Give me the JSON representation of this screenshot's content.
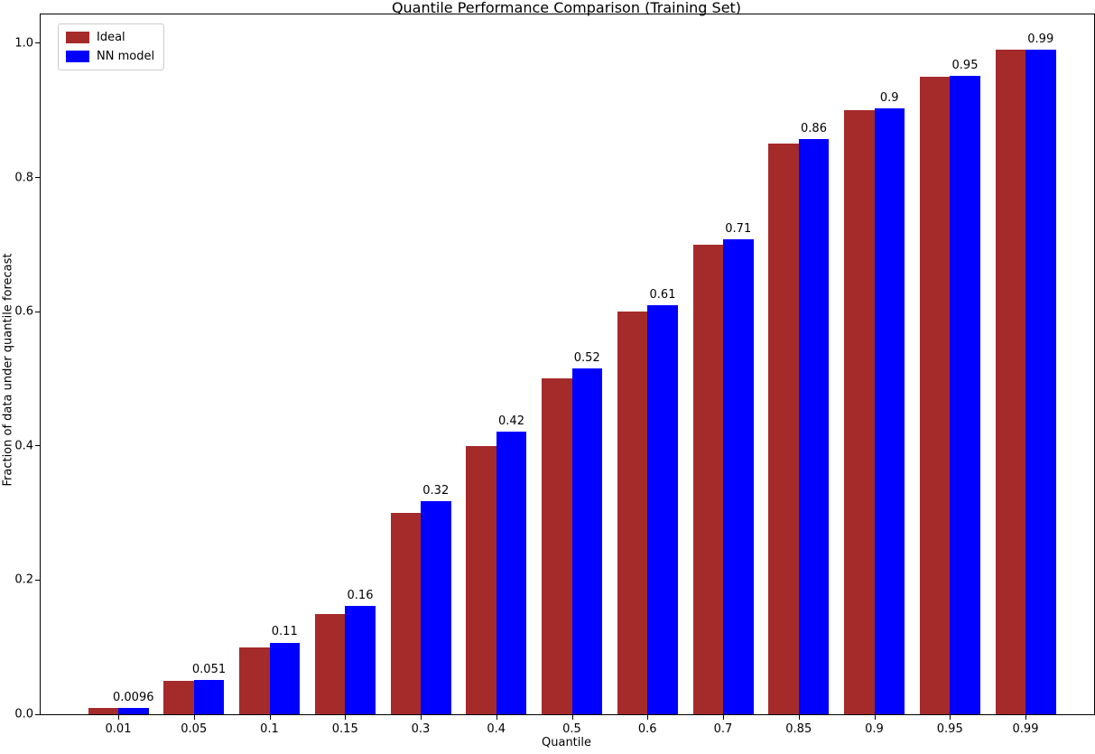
{
  "chart_data": {
    "type": "bar",
    "title": "Quantile Performance Comparison (Training Set)",
    "xlabel": "Quantile",
    "ylabel": "Fraction of data under quantile forecast",
    "categories": [
      "0.01",
      "0.05",
      "0.1",
      "0.15",
      "0.3",
      "0.4",
      "0.5",
      "0.6",
      "0.7",
      "0.85",
      "0.9",
      "0.95",
      "0.99"
    ],
    "series": [
      {
        "name": "Ideal",
        "color": "#A52A2A",
        "values": [
          0.01,
          0.05,
          0.1,
          0.15,
          0.3,
          0.4,
          0.5,
          0.6,
          0.7,
          0.85,
          0.9,
          0.95,
          0.99
        ]
      },
      {
        "name": "NN model",
        "color": "#0000FF",
        "values": [
          0.0096,
          0.051,
          0.107,
          0.162,
          0.318,
          0.421,
          0.516,
          0.609,
          0.708,
          0.857,
          0.903,
          0.951,
          0.99
        ],
        "bar_labels": [
          "0.0096",
          "0.051",
          "0.11",
          "0.16",
          "0.32",
          "0.42",
          "0.52",
          "0.61",
          "0.71",
          "0.86",
          "0.9",
          "0.95",
          "0.99"
        ]
      }
    ],
    "yticks": [
      0.0,
      0.2,
      0.4,
      0.6,
      0.8,
      1.0
    ],
    "ytick_labels": [
      "0.0",
      "0.2",
      "0.4",
      "0.6",
      "0.8",
      "1.0"
    ],
    "ylim": [
      0,
      1.043
    ],
    "grid": false,
    "legend_position": "upper left"
  }
}
